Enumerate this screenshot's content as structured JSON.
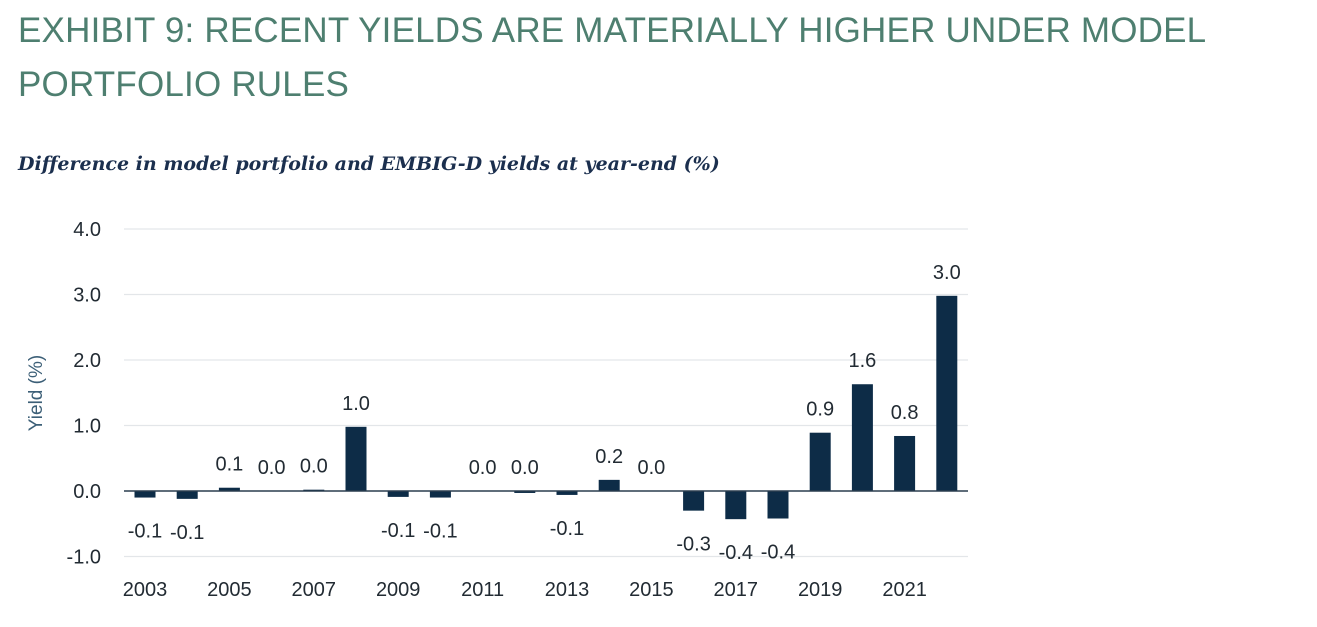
{
  "header": {
    "title": "EXHIBIT 9: RECENT YIELDS ARE MATERIALLY HIGHER UNDER MODEL PORTFOLIO RULES",
    "subtitle": "Difference in model portfolio and EMBIG-D yields at year-end (%)"
  },
  "colors": {
    "title": "#4e7f70",
    "subtitle": "#1b2f4e",
    "bar": "#0d2c47",
    "gridline": "#e3e6e9",
    "axis_label": "#3c5f77"
  },
  "chart_data": {
    "type": "bar",
    "title": "",
    "xlabel": "",
    "ylabel": "Yield (%)",
    "ylim": [
      -1.0,
      4.0
    ],
    "yticks": [
      "4.0",
      "3.0",
      "2.0",
      "1.0",
      "0.0",
      "-1.0"
    ],
    "ytick_values": [
      4,
      3,
      2,
      1,
      0,
      -1
    ],
    "grid": true,
    "categories": [
      "2003",
      "2004",
      "2005",
      "2006",
      "2007",
      "2008",
      "2009",
      "2010",
      "2011",
      "2012",
      "2013",
      "2014",
      "2015",
      "2016",
      "2017",
      "2018",
      "2019",
      "2020",
      "2021",
      "2022"
    ],
    "xtick_labels": [
      "2003",
      "",
      "2005",
      "",
      "2007",
      "",
      "2009",
      "",
      "2011",
      "",
      "2013",
      "",
      "2015",
      "",
      "2017",
      "",
      "2019",
      "",
      "2021",
      ""
    ],
    "values": [
      -0.1,
      -0.12,
      0.05,
      0.0,
      0.02,
      0.98,
      -0.09,
      -0.1,
      0.0,
      -0.03,
      -0.06,
      0.17,
      0.0,
      -0.3,
      -0.43,
      -0.42,
      0.89,
      1.63,
      0.84,
      2.98
    ],
    "data_labels": [
      "-0.1",
      "-0.1",
      "0.1",
      "0.0",
      "0.0",
      "1.0",
      "-0.1",
      "-0.1",
      "0.0",
      "0.0",
      "-0.1",
      "0.2",
      "0.0",
      "-0.3",
      "-0.4",
      "-0.4",
      "0.9",
      "1.6",
      "0.8",
      "3.0"
    ]
  }
}
